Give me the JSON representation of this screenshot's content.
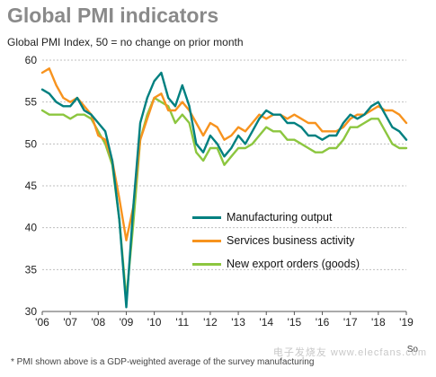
{
  "header": {
    "title": "Global PMI indicators",
    "subtitle": "Global  PMI Index, 50 = no change on prior month"
  },
  "footer": {
    "source": "So",
    "footnote": "* PMI shown above is a GDP-weighted average of the survey manufacturing"
  },
  "watermark": {
    "text": "电子发烧友 www.elecfans.com"
  },
  "chart_data": {
    "type": "line",
    "title": "Global PMI indicators",
    "subtitle": "Global  PMI Index, 50 = no change on prior month",
    "x_tick_labels": [
      "'06",
      "'07",
      "'08",
      "'09",
      "'10",
      "'11",
      "'12",
      "'13",
      "'14",
      "'15",
      "'16",
      "'17",
      "'18",
      "'19"
    ],
    "xlim": [
      2006.0,
      2019.0
    ],
    "ylim": [
      30,
      60
    ],
    "yticks": [
      30,
      35,
      40,
      45,
      50,
      55,
      60
    ],
    "grid": true,
    "legend_position": "inside-lower-right",
    "x": [
      2006.0,
      2006.25,
      2006.5,
      2006.75,
      2007.0,
      2007.25,
      2007.5,
      2007.75,
      2008.0,
      2008.25,
      2008.5,
      2008.75,
      2009.0,
      2009.25,
      2009.5,
      2009.75,
      2010.0,
      2010.25,
      2010.5,
      2010.75,
      2011.0,
      2011.25,
      2011.5,
      2011.75,
      2012.0,
      2012.25,
      2012.5,
      2012.75,
      2013.0,
      2013.25,
      2013.5,
      2013.75,
      2014.0,
      2014.25,
      2014.5,
      2014.75,
      2015.0,
      2015.25,
      2015.5,
      2015.75,
      2016.0,
      2016.25,
      2016.5,
      2016.75,
      2017.0,
      2017.25,
      2017.5,
      2017.75,
      2018.0,
      2018.25,
      2018.5,
      2018.75,
      2019.0
    ],
    "series": [
      {
        "name": "Manufacturing output",
        "color": "#008080",
        "values": [
          56.5,
          56.0,
          55.0,
          54.5,
          54.5,
          55.5,
          54.0,
          53.5,
          52.5,
          51.5,
          48.0,
          41.0,
          30.5,
          42.5,
          52.5,
          55.5,
          57.5,
          58.5,
          55.5,
          54.5,
          57.0,
          54.5,
          50.0,
          49.0,
          51.0,
          50.0,
          48.5,
          49.5,
          51.0,
          50.0,
          51.5,
          53.0,
          54.0,
          53.5,
          53.5,
          52.5,
          52.5,
          52.0,
          51.0,
          51.0,
          50.5,
          51.0,
          51.0,
          52.5,
          53.5,
          53.0,
          53.5,
          54.5,
          55.0,
          53.5,
          52.0,
          51.5,
          50.5
        ]
      },
      {
        "name": "Services business activity",
        "color": "#f7931e",
        "values": [
          58.5,
          59.0,
          57.0,
          55.5,
          55.0,
          55.5,
          54.5,
          53.5,
          51.0,
          50.5,
          48.0,
          43.5,
          38.5,
          42.5,
          50.5,
          53.0,
          55.5,
          56.0,
          54.0,
          54.0,
          55.0,
          54.0,
          52.5,
          51.0,
          52.5,
          52.0,
          50.5,
          51.0,
          52.0,
          51.5,
          52.5,
          53.5,
          53.0,
          53.5,
          53.5,
          53.0,
          53.5,
          53.0,
          52.5,
          52.5,
          51.5,
          51.5,
          51.5,
          52.0,
          53.0,
          53.5,
          53.5,
          54.0,
          54.5,
          54.0,
          54.0,
          53.5,
          52.5
        ]
      },
      {
        "name": "New export orders (goods)",
        "color": "#8cc63f",
        "values": [
          54.0,
          53.5,
          53.5,
          53.5,
          53.0,
          53.5,
          53.5,
          53.0,
          51.5,
          50.0,
          47.5,
          41.0,
          31.5,
          40.5,
          50.5,
          53.5,
          55.5,
          55.0,
          54.5,
          52.5,
          53.5,
          52.5,
          49.0,
          48.0,
          49.5,
          49.5,
          47.5,
          48.5,
          49.5,
          49.5,
          50.0,
          51.0,
          52.0,
          51.5,
          51.5,
          50.5,
          50.5,
          50.0,
          49.5,
          49.0,
          49.0,
          49.5,
          49.5,
          50.5,
          52.0,
          52.0,
          52.5,
          53.0,
          53.0,
          51.5,
          50.0,
          49.5,
          49.5
        ]
      }
    ]
  }
}
